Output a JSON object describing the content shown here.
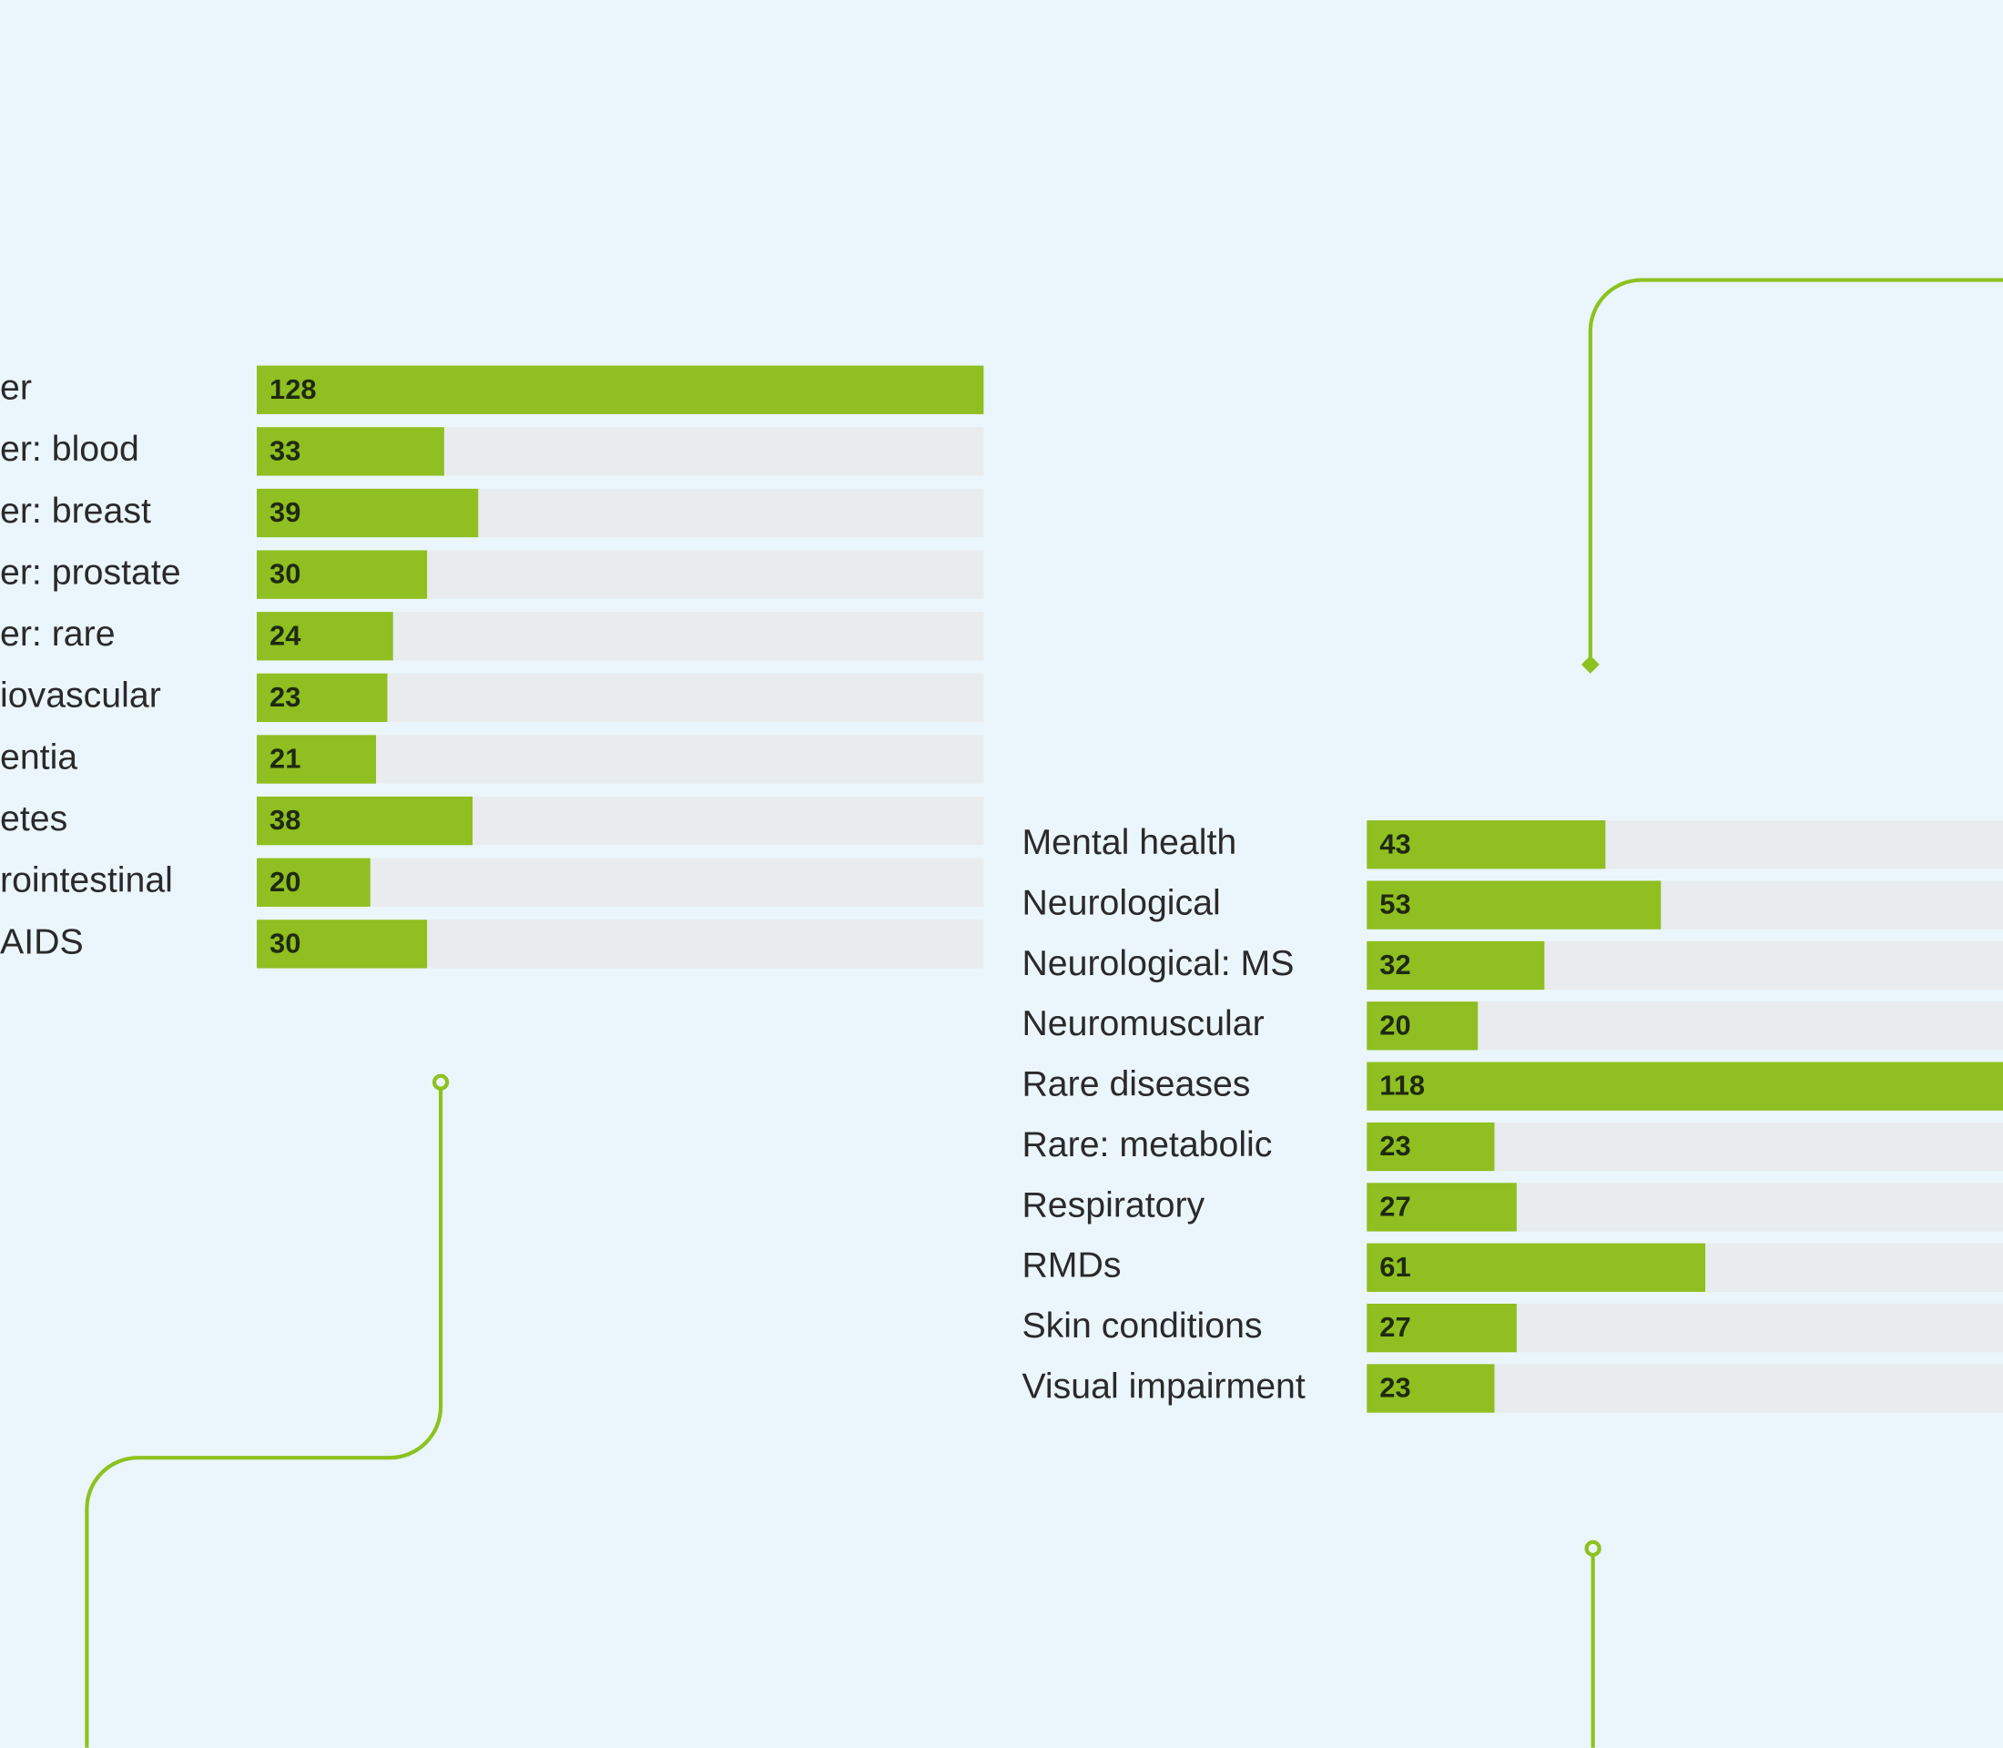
{
  "chart_data": [
    {
      "type": "bar",
      "orientation": "horizontal",
      "categories": [
        "er",
        "er: blood",
        "er: breast",
        "er: prostate",
        "er: rare",
        "iovascular",
        "entia",
        "etes",
        "rointestinal",
        "AIDS"
      ],
      "values": [
        128,
        33,
        39,
        30,
        24,
        23,
        21,
        38,
        20,
        30
      ],
      "xlim": [
        0,
        128
      ],
      "color": "#8fbf21",
      "track_color": "#e8ecee"
    },
    {
      "type": "bar",
      "orientation": "horizontal",
      "categories": [
        "Mental health",
        "Neurological",
        "Neurological: MS",
        "Neuromuscular",
        "Rare diseases",
        "Rare: metabolic",
        "Respiratory",
        "RMDs",
        "Skin conditions",
        "Visual impairment"
      ],
      "values": [
        43,
        53,
        32,
        20,
        118,
        23,
        27,
        61,
        27,
        23
      ],
      "xlim": [
        0,
        131
      ],
      "color": "#8fbf21",
      "track_color": "#e8ecee"
    }
  ]
}
